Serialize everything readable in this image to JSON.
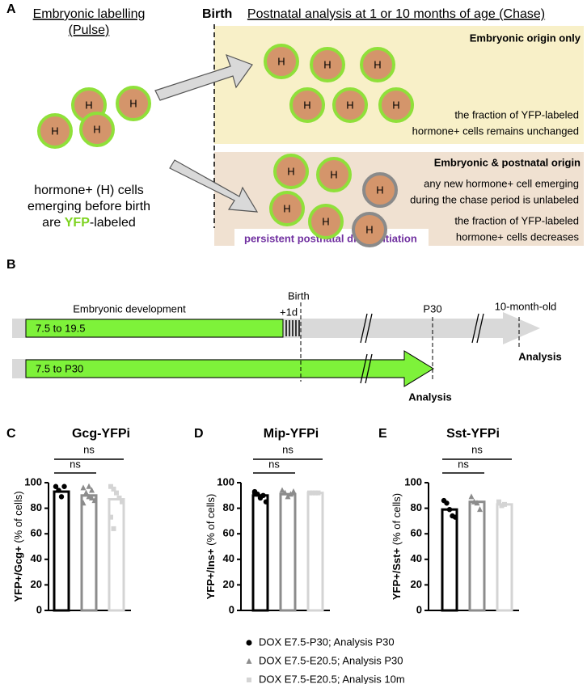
{
  "panel_a": {
    "letter": "A",
    "pulse_title": "Embryonic labelling",
    "pulse_subtitle": "(Pulse)",
    "birth": "Birth",
    "chase_title": "Postnatal analysis at 1 or 10 months of age (Chase)",
    "cell_label": "H",
    "left_text": [
      "hormone+ (H) cells",
      "emerging before birth"
    ],
    "left_text_pre": "are ",
    "left_text_yfp": "YFP",
    "left_text_post": "-labeled",
    "box1_title": "Embryonic origin only",
    "box1_text": [
      "the fraction of YFP-labeled",
      "hormone+ cells remains unchanged"
    ],
    "box2_title": "Embryonic & postnatal origin",
    "box2_text": [
      "any new hormone+ cell emerging",
      "during the chase period is unlabeled"
    ],
    "box2_text2": [
      "the fraction of YFP-labeled",
      "hormone+ cells decreases"
    ],
    "footer": "persistent postnatal differentiation"
  },
  "panel_b": {
    "letter": "B",
    "embryonic": "Embryonic development",
    "plus1d": "+1d",
    "birth": "Birth",
    "p30": "P30",
    "ten_month": "10-month-old",
    "bar1": "7.5 to 19.5",
    "bar2": "7.5 to P30",
    "analysis": "Analysis"
  },
  "chart_data": [
    {
      "type": "bar",
      "letter": "C",
      "title": "Gcg-YFPi",
      "ylabel": "YFP+/Gcg+",
      "ylabel_unit": "(% of cells)",
      "ylim": [
        0,
        100
      ],
      "yticks": [
        0,
        20,
        40,
        60,
        80,
        100
      ],
      "values": [
        93,
        90,
        87
      ],
      "colors": [
        "#000000",
        "#8c8c8c",
        "#d4d4d4"
      ],
      "points": [
        [
          97,
          94,
          89,
          97
        ],
        [
          96,
          92,
          89,
          94,
          86,
          84,
          91,
          97,
          88
        ],
        [
          97,
          95,
          92,
          88,
          85,
          73,
          64
        ]
      ],
      "annotations": [
        "ns",
        "ns"
      ]
    },
    {
      "type": "bar",
      "letter": "D",
      "title": "Mip-YFPi",
      "ylabel": "YFP+/Ins+",
      "ylabel_unit": "(% of cells)",
      "ylim": [
        0,
        100
      ],
      "yticks": [
        0,
        20,
        40,
        60,
        80,
        100
      ],
      "values": [
        90,
        91,
        92
      ],
      "colors": [
        "#000000",
        "#8c8c8c",
        "#d4d4d4"
      ],
      "points": [
        [
          93,
          91,
          88,
          90,
          85,
          92
        ],
        [
          94,
          92,
          89,
          91,
          93
        ],
        [
          92,
          92,
          92,
          92
        ]
      ],
      "annotations": [
        "ns",
        "ns"
      ]
    },
    {
      "type": "bar",
      "letter": "E",
      "title": "Sst-YFPi",
      "ylabel": "YFP+/Sst+",
      "ylabel_unit": "(% of cells)",
      "ylim": [
        0,
        100
      ],
      "yticks": [
        0,
        20,
        40,
        60,
        80,
        100
      ],
      "values": [
        79,
        85,
        83
      ],
      "colors": [
        "#000000",
        "#8c8c8c",
        "#d4d4d4"
      ],
      "points": [
        [
          86,
          84,
          79,
          74,
          73
        ],
        [
          89,
          85,
          84,
          79
        ],
        [
          85,
          82,
          83
        ]
      ],
      "annotations": [
        "ns",
        "ns"
      ]
    }
  ],
  "legend": [
    "DOX E7.5-P30; Analysis P30",
    "DOX E7.5-E20.5; Analysis P30",
    "DOX E7.5-E20.5; Analysis 10m"
  ]
}
